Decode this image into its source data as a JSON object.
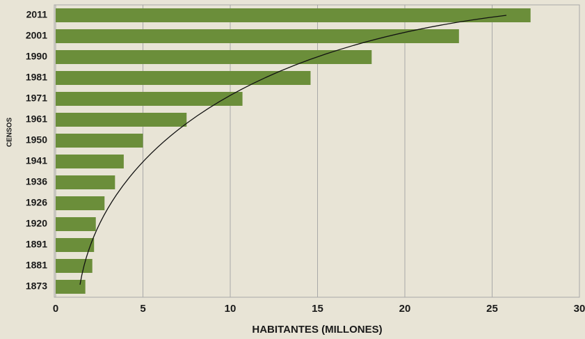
{
  "chart_data": {
    "type": "bar",
    "orientation": "horizontal",
    "x_label": "HABITANTES (MILLONES)",
    "y_label": "CENSOS",
    "categories": [
      "2011",
      "2001",
      "1990",
      "1981",
      "1971",
      "1961",
      "1950",
      "1941",
      "1936",
      "1926",
      "1920",
      "1891",
      "1881",
      "1873"
    ],
    "values": [
      27.2,
      23.1,
      18.1,
      14.6,
      10.7,
      7.5,
      5.0,
      3.9,
      3.4,
      2.8,
      2.3,
      2.2,
      2.1,
      1.7
    ],
    "color": "#6b8e3a",
    "xlim": [
      0,
      30
    ],
    "xticks": [
      0,
      5,
      10,
      15,
      20,
      25,
      30
    ],
    "grid": true
  }
}
